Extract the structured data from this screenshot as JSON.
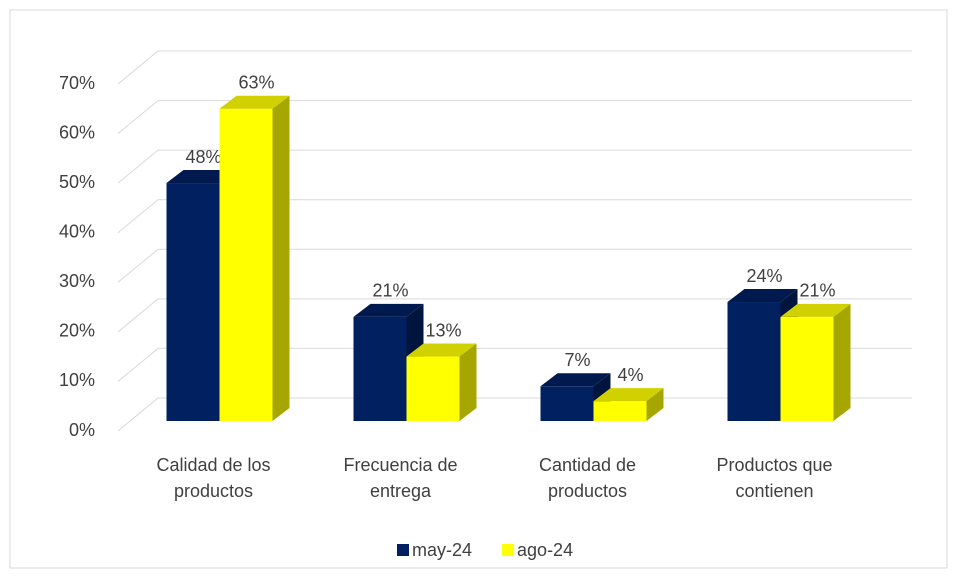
{
  "chart_data": {
    "type": "bar3d",
    "categories": [
      "Calidad de los productos",
      "Frecuencia de entrega",
      "Cantidad de productos",
      "Productos que contienen"
    ],
    "series": [
      {
        "name": "may-24",
        "color": "#002060",
        "values": [
          48,
          21,
          7,
          24
        ],
        "value_labels": [
          "48%",
          "21%",
          "7%",
          "24%"
        ]
      },
      {
        "name": "ago-24",
        "color": "#ffff00",
        "values": [
          63,
          13,
          4,
          21
        ],
        "value_labels": [
          "63%",
          "13%",
          "4%",
          "21%"
        ]
      }
    ],
    "ylim": [
      0,
      70
    ],
    "yticks": [
      {
        "value": 0,
        "label": "0%"
      },
      {
        "value": 10,
        "label": "10%"
      },
      {
        "value": 20,
        "label": "20%"
      },
      {
        "value": 30,
        "label": "30%"
      },
      {
        "value": 40,
        "label": "40%"
      },
      {
        "value": 50,
        "label": "50%"
      },
      {
        "value": 60,
        "label": "60%"
      },
      {
        "value": 70,
        "label": "70%"
      }
    ],
    "grid": true,
    "legend": "bottom"
  }
}
